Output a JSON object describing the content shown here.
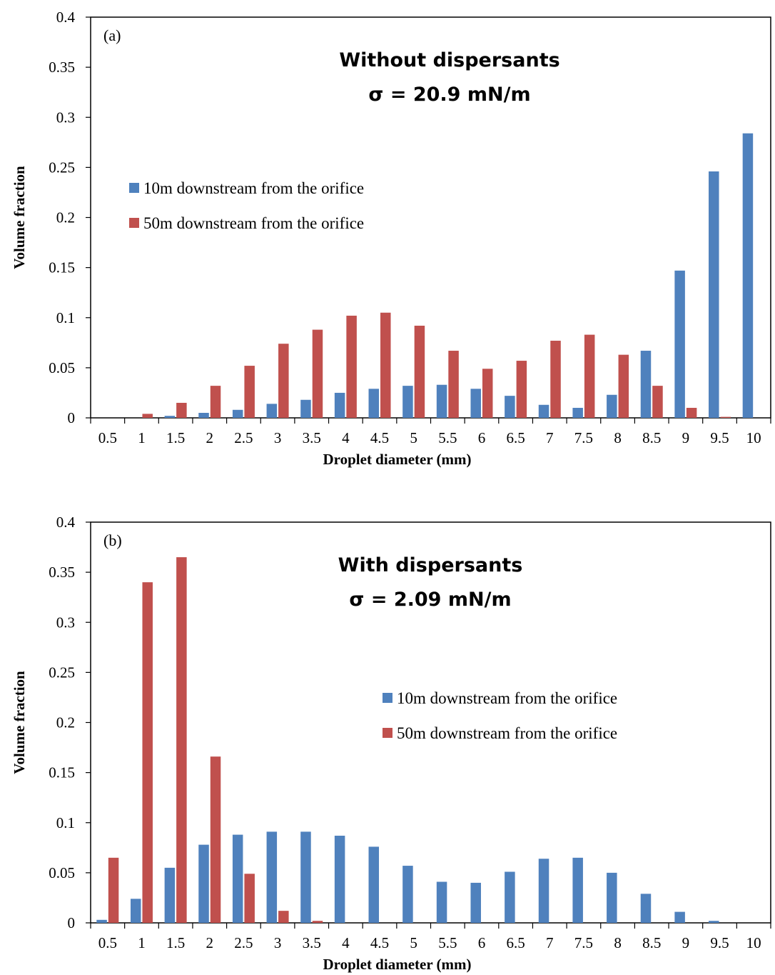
{
  "chart_data": [
    {
      "type": "bar",
      "panel_label": "(a)",
      "title": "Without dispersants",
      "subtitle": "σ = 20.9 mN/m",
      "xlabel": "Droplet diameter (mm)",
      "ylabel": "Volume fraction",
      "ylim": [
        0,
        0.4
      ],
      "yticks": [
        "0",
        "0.05",
        "0.1",
        "0.15",
        "0.2",
        "0.25",
        "0.3",
        "0.35",
        "0.4"
      ],
      "categories": [
        "0.5",
        "1",
        "1.5",
        "2",
        "2.5",
        "3",
        "3.5",
        "4",
        "4.5",
        "5",
        "5.5",
        "6",
        "6.5",
        "7",
        "7.5",
        "8",
        "8.5",
        "9",
        "9.5",
        "10"
      ],
      "legend_position": "left",
      "series": [
        {
          "name": "10m downstream from the orifice",
          "color": "#4F81BD",
          "values": [
            0,
            0,
            0.002,
            0.005,
            0.008,
            0.014,
            0.018,
            0.025,
            0.029,
            0.032,
            0.033,
            0.029,
            0.022,
            0.013,
            0.01,
            0.023,
            0.067,
            0.147,
            0.246,
            0.284
          ]
        },
        {
          "name": "50m  downstream from the orifice",
          "color": "#C0504D",
          "values": [
            0,
            0.004,
            0.015,
            0.032,
            0.052,
            0.074,
            0.088,
            0.102,
            0.105,
            0.092,
            0.067,
            0.049,
            0.057,
            0.077,
            0.083,
            0.063,
            0.032,
            0.01,
            0.001,
            0
          ]
        }
      ]
    },
    {
      "type": "bar",
      "panel_label": "(b)",
      "title": "With dispersants",
      "subtitle": "σ = 2.09 mN/m",
      "xlabel": "Droplet diameter (mm)",
      "ylabel": "Volume fraction",
      "ylim": [
        0,
        0.4
      ],
      "yticks": [
        "0",
        "0.05",
        "0.1",
        "0.15",
        "0.2",
        "0.25",
        "0.3",
        "0.35",
        "0.4"
      ],
      "categories": [
        "0.5",
        "1",
        "1.5",
        "2",
        "2.5",
        "3",
        "3.5",
        "4",
        "4.5",
        "5",
        "5.5",
        "6",
        "6.5",
        "7",
        "7.5",
        "8",
        "8.5",
        "9",
        "9.5",
        "10"
      ],
      "legend_position": "center-right",
      "series": [
        {
          "name": "10m downstream from the orifice",
          "color": "#4F81BD",
          "values": [
            0.003,
            0.024,
            0.055,
            0.078,
            0.088,
            0.091,
            0.091,
            0.087,
            0.076,
            0.057,
            0.041,
            0.04,
            0.051,
            0.064,
            0.065,
            0.05,
            0.029,
            0.011,
            0.002,
            0
          ]
        },
        {
          "name": "50m  downstream from the orifice",
          "color": "#C0504D",
          "values": [
            0.065,
            0.34,
            0.365,
            0.166,
            0.049,
            0.012,
            0.002,
            0,
            0,
            0,
            0,
            0,
            0,
            0,
            0,
            0,
            0,
            0,
            0,
            0
          ]
        }
      ]
    }
  ]
}
